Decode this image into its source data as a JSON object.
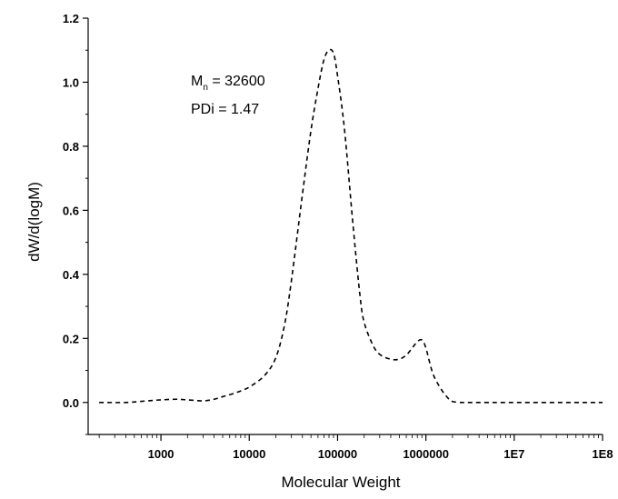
{
  "chart_data": {
    "type": "line",
    "title": "",
    "xlabel": "Molecular Weight",
    "ylabel": "dW/d(logM)",
    "x_scale": "log",
    "xlim": [
      150,
      100000000
    ],
    "ylim": [
      -0.1,
      1.2
    ],
    "x_ticks": [
      {
        "value": 1000,
        "label": "1000"
      },
      {
        "value": 10000,
        "label": "10000"
      },
      {
        "value": 100000,
        "label": "100000"
      },
      {
        "value": 1000000,
        "label": "1000000"
      },
      {
        "value": 10000000,
        "label": "1E7"
      },
      {
        "value": 100000000,
        "label": "1E8"
      }
    ],
    "y_ticks": [
      {
        "value": 0.0,
        "label": "0.0"
      },
      {
        "value": 0.2,
        "label": "0.2"
      },
      {
        "value": 0.4,
        "label": "0.4"
      },
      {
        "value": 0.6,
        "label": "0.6"
      },
      {
        "value": 0.8,
        "label": "0.8"
      },
      {
        "value": 1.0,
        "label": "1.0"
      },
      {
        "value": 1.2,
        "label": "1.2"
      }
    ],
    "series": [
      {
        "line_style": "dashed",
        "color": "#000000",
        "x": [
          200,
          400,
          700,
          1000,
          1500,
          2000,
          3000,
          4000,
          5000,
          7000,
          10000,
          15000,
          20000,
          25000,
          30000,
          40000,
          50000,
          60000,
          70000,
          80000,
          90000,
          100000,
          120000,
          150000,
          180000,
          200000,
          250000,
          300000,
          400000,
          500000,
          600000,
          700000,
          800000,
          900000,
          1000000,
          1200000,
          1500000,
          1800000,
          2000000,
          2500000,
          3000000,
          5000000,
          10000000,
          50000000,
          100000000
        ],
        "y": [
          0.0,
          0.0,
          0.005,
          0.008,
          0.01,
          0.008,
          0.005,
          0.01,
          0.018,
          0.03,
          0.048,
          0.085,
          0.14,
          0.24,
          0.38,
          0.65,
          0.85,
          0.98,
          1.07,
          1.1,
          1.09,
          1.02,
          0.85,
          0.55,
          0.33,
          0.25,
          0.18,
          0.15,
          0.135,
          0.135,
          0.148,
          0.17,
          0.19,
          0.195,
          0.17,
          0.09,
          0.04,
          0.012,
          0.003,
          0.0,
          0.0,
          0.0,
          0.0,
          0.0,
          0.0
        ]
      }
    ],
    "annotations": {
      "mn_symbol": "M",
      "mn_subscript": "n",
      "mn_text": " = 32600",
      "pdi_text": "PDi = 1.47"
    },
    "grid": false,
    "legend": "none"
  }
}
